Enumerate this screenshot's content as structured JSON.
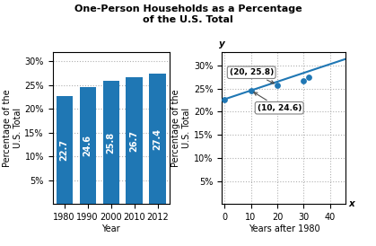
{
  "title": "One-Person Households as a Percentage\nof the U.S. Total",
  "chart_data": [
    {
      "type": "bar",
      "categories": [
        "1980",
        "1990",
        "2000",
        "2010",
        "2012"
      ],
      "values": [
        22.7,
        24.6,
        25.8,
        26.7,
        27.4
      ],
      "x_label": "Year",
      "y_label": "Percentage of the\nU.S. Total",
      "ylim": [
        0,
        32
      ],
      "yticks": [
        {
          "value": 5,
          "label": "5%"
        },
        {
          "value": 10,
          "label": "10%"
        },
        {
          "value": 15,
          "label": "15%"
        },
        {
          "value": 20,
          "label": "20%"
        },
        {
          "value": 25,
          "label": "25%"
        },
        {
          "value": 30,
          "label": "30%"
        }
      ],
      "grid": true,
      "data_labels": true
    },
    {
      "type": "scatter",
      "series": [
        {
          "type": "scatter",
          "x": [
            0,
            10,
            20,
            30,
            32
          ],
          "values": [
            22.7,
            24.6,
            25.8,
            26.7,
            27.4
          ]
        },
        {
          "type": "line",
          "x": [
            -1,
            46
          ],
          "values": [
            22.51,
            31.44
          ]
        }
      ],
      "x_label": "Years after 1980",
      "y_label": "Percentage of the\nU.S. Total",
      "xlim": [
        -1,
        46
      ],
      "xticks": [
        0,
        10,
        20,
        30,
        40
      ],
      "ylim": [
        0,
        33
      ],
      "yticks": [
        {
          "value": 5,
          "label": "5%"
        },
        {
          "value": 10,
          "label": "10%"
        },
        {
          "value": 15,
          "label": "15%"
        },
        {
          "value": 20,
          "label": "20%"
        },
        {
          "value": 25,
          "label": "25%"
        },
        {
          "value": 30,
          "label": "30%"
        }
      ],
      "grid": true,
      "annotations": [
        {
          "text": "(20, 25.8)",
          "x": 20,
          "y": 25.8
        },
        {
          "text": "(10, 24.6)",
          "x": 10,
          "y": 24.6
        },
        {
          "text": "x",
          "axis": "x"
        },
        {
          "text": "y",
          "axis": "y"
        }
      ]
    }
  ]
}
